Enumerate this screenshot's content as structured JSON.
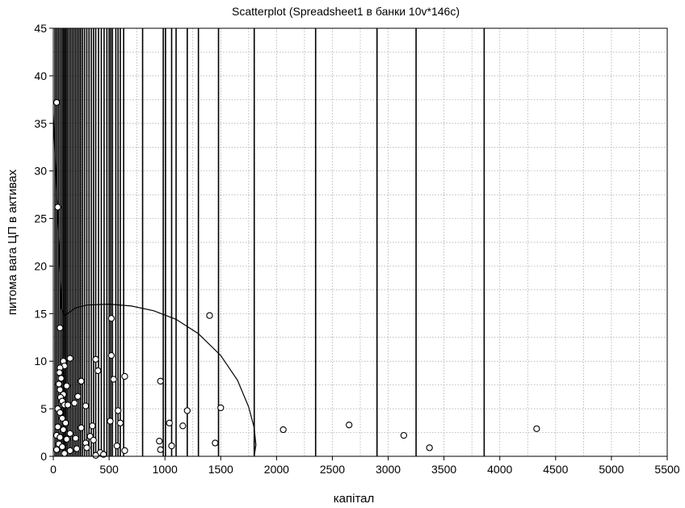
{
  "chart_data": {
    "type": "scatter",
    "title": "Scatterplot (Spreadsheet1 в банки 10v*146c)",
    "xlabel": "капітал",
    "ylabel": "питома вага ЦП в активах",
    "xlim": [
      0,
      5500
    ],
    "ylim": [
      0,
      45
    ],
    "x_ticks": [
      0,
      500,
      1000,
      1500,
      2000,
      2500,
      3000,
      3500,
      4000,
      4500,
      5000,
      5500
    ],
    "y_ticks": [
      0,
      5,
      10,
      15,
      20,
      25,
      30,
      35,
      40,
      45
    ],
    "x_minor_step": 250,
    "y_minor_step": 2.5,
    "grid": true,
    "colors": {
      "axis": "#000000",
      "grid": "#a0a0a0",
      "marker_fill": "#ffffff",
      "marker_stroke": "#000000"
    },
    "points": [
      [
        30,
        37.2
      ],
      [
        40,
        26.2
      ],
      [
        60,
        13.5
      ],
      [
        90,
        10.0
      ],
      [
        150,
        10.3
      ],
      [
        100,
        9.5
      ],
      [
        60,
        9.3
      ],
      [
        55,
        8.8
      ],
      [
        70,
        8.2
      ],
      [
        50,
        7.6
      ],
      [
        120,
        7.4
      ],
      [
        60,
        7.0
      ],
      [
        90,
        6.5
      ],
      [
        65,
        6.2
      ],
      [
        220,
        6.3
      ],
      [
        80,
        5.8
      ],
      [
        100,
        5.4
      ],
      [
        40,
        5.0
      ],
      [
        130,
        5.4
      ],
      [
        190,
        5.6
      ],
      [
        60,
        4.6
      ],
      [
        80,
        4.0
      ],
      [
        110,
        3.5
      ],
      [
        40,
        3.1
      ],
      [
        90,
        2.8
      ],
      [
        150,
        2.4
      ],
      [
        30,
        2.2
      ],
      [
        60,
        2.0
      ],
      [
        120,
        1.8
      ],
      [
        200,
        1.9
      ],
      [
        50,
        1.3
      ],
      [
        80,
        1.0
      ],
      [
        30,
        0.7
      ],
      [
        150,
        0.6
      ],
      [
        100,
        0.3
      ],
      [
        250,
        7.9
      ],
      [
        290,
        5.3
      ],
      [
        250,
        3.0
      ],
      [
        290,
        1.4
      ],
      [
        330,
        2.1
      ],
      [
        360,
        1.7
      ],
      [
        300,
        0.9
      ],
      [
        380,
        10.2
      ],
      [
        400,
        9.0
      ],
      [
        350,
        3.2
      ],
      [
        420,
        0.4
      ],
      [
        380,
        0.1
      ],
      [
        520,
        14.5
      ],
      [
        520,
        10.6
      ],
      [
        540,
        8.1
      ],
      [
        600,
        3.5
      ],
      [
        510,
        3.7
      ],
      [
        580,
        4.8
      ],
      [
        570,
        1.1
      ],
      [
        640,
        8.4
      ],
      [
        640,
        0.6
      ],
      [
        450,
        0.2
      ],
      [
        210,
        0.8
      ],
      [
        960,
        7.9
      ],
      [
        950,
        1.6
      ],
      [
        960,
        0.7
      ],
      [
        1040,
        3.5
      ],
      [
        1060,
        1.1
      ],
      [
        1160,
        3.2
      ],
      [
        1200,
        4.8
      ],
      [
        1400,
        14.8
      ],
      [
        1450,
        1.4
      ],
      [
        1500,
        5.1
      ],
      [
        2060,
        2.8
      ],
      [
        2650,
        3.3
      ],
      [
        3140,
        2.2
      ],
      [
        3370,
        0.9
      ],
      [
        4330,
        2.9
      ]
    ],
    "vertical_lines_x": [
      15,
      30,
      45,
      60,
      75,
      88,
      100,
      112,
      125,
      140,
      155,
      170,
      185,
      200,
      215,
      230,
      245,
      262,
      280,
      300,
      320,
      340,
      360,
      380,
      405,
      430,
      455,
      480,
      500,
      515,
      530,
      560,
      580,
      600,
      630,
      800,
      985,
      1005,
      1060,
      1100,
      1200,
      1300,
      1480,
      1800,
      2350,
      2900,
      3250,
      3860
    ],
    "envelope_curve": [
      [
        0,
        36
      ],
      [
        10,
        33
      ],
      [
        25,
        29
      ],
      [
        50,
        22
      ],
      [
        70,
        15.5
      ],
      [
        100,
        14.8
      ],
      [
        200,
        15.6
      ],
      [
        300,
        15.9
      ],
      [
        500,
        16.0
      ],
      [
        700,
        15.8
      ],
      [
        900,
        15.3
      ],
      [
        1100,
        14.4
      ],
      [
        1300,
        12.9
      ],
      [
        1500,
        10.6
      ],
      [
        1650,
        8.0
      ],
      [
        1750,
        5.2
      ],
      [
        1800,
        3.0
      ],
      [
        1815,
        1.2
      ],
      [
        1800,
        0
      ]
    ]
  }
}
